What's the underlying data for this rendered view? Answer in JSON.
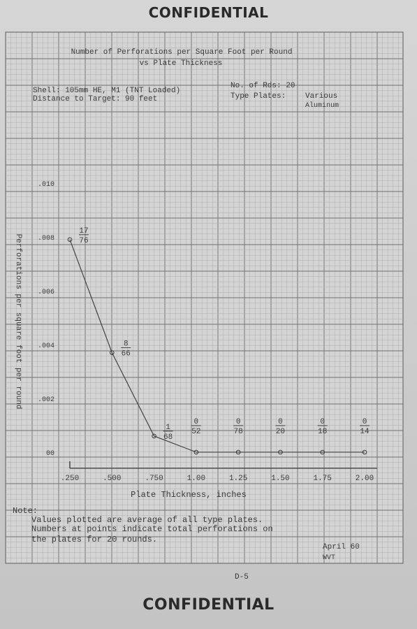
{
  "page": {
    "header": "CONFIDENTIAL",
    "footer": "CONFIDENTIAL",
    "page_number": "D-5",
    "date_note": "April 60",
    "initials": "WVT"
  },
  "info": {
    "shell": "Shell:  105mm HE, M1 (TNT Loaded)",
    "distance": "Distance to Target:  90 feet",
    "rounds": "No. of Rds:  20",
    "plates_label": "Type Plates:",
    "plates_value": "Various",
    "plates_material": "Aluminum"
  },
  "notes": {
    "heading": "Note:",
    "line1": "Values plotted are average of all type plates.",
    "line2": "Numbers at points indicate total perforations on",
    "line3": "the plates for 20 rounds."
  },
  "colors": {
    "grid_major": "#6f6f6f",
    "grid_minor": "#a9a9a9",
    "paper": "#d4d4d4",
    "ink": "#3a3a3a"
  },
  "chart_data": {
    "type": "line",
    "title": "Number of Perforations per Square Foot per Round",
    "subtitle": "vs Plate Thickness",
    "xlabel": "Plate Thickness, inches",
    "ylabel": "Perforations per square foot per round",
    "xlim": [
      0.25,
      2.0
    ],
    "ylim": [
      0,
      0.01
    ],
    "x_ticks": [
      ".250",
      ".500",
      ".750",
      "1.00",
      "1.25",
      "1.50",
      "1.75",
      "2.00"
    ],
    "y_ticks": [
      "00",
      ".002",
      ".004",
      ".006",
      ".008",
      ".010"
    ],
    "grid": true,
    "series": [
      {
        "x": [
          0.25,
          0.5,
          0.75,
          1.0,
          1.25,
          1.5,
          1.75,
          2.0
        ],
        "values": [
          0.0079,
          0.0037,
          0.0006,
          0.0,
          0.0,
          0.0,
          0.0,
          0.0
        ],
        "labels": [
          [
            "17",
            "76"
          ],
          [
            "8",
            "66"
          ],
          [
            "1",
            "68"
          ],
          [
            "0",
            "52"
          ],
          [
            "0",
            "78"
          ],
          [
            "0",
            "20"
          ],
          [
            "0",
            "18"
          ],
          [
            "0",
            "14"
          ]
        ]
      }
    ]
  }
}
